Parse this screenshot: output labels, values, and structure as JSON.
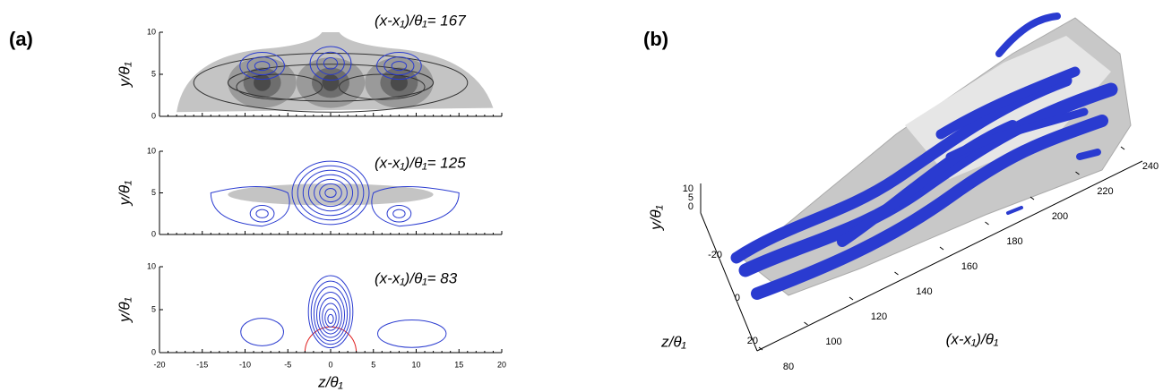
{
  "panel_a": {
    "label": "(a)",
    "plots": [
      {
        "title": "(x-x₁)/θ₁= 167",
        "ylabel": "y/θ₁",
        "yticks": [
          "0",
          "5",
          "10"
        ]
      },
      {
        "title": "(x-x₁)/θ₁= 125",
        "ylabel": "y/θ₁",
        "yticks": [
          "0",
          "5",
          "10"
        ]
      },
      {
        "title": "(x-x₁)/θ₁= 83",
        "ylabel": "y/θ₁",
        "yticks": [
          "0",
          "5",
          "10"
        ]
      }
    ],
    "xticks": [
      "-20",
      "-15",
      "-10",
      "-5",
      "0",
      "5",
      "10",
      "15",
      "20"
    ],
    "xlabel": "z/θ₁"
  },
  "panel_b": {
    "label": "(b)",
    "yticks": [
      "10",
      "5",
      "0"
    ],
    "ylabel": "y/θ₁",
    "zticks": [
      "-20",
      "0",
      "20"
    ],
    "zlabel": "z/θ₁",
    "xticks": [
      "80",
      "100",
      "120",
      "140",
      "160",
      "180",
      "200",
      "220",
      "240"
    ],
    "xlabel": "(x-x₁)/θ₁"
  }
}
